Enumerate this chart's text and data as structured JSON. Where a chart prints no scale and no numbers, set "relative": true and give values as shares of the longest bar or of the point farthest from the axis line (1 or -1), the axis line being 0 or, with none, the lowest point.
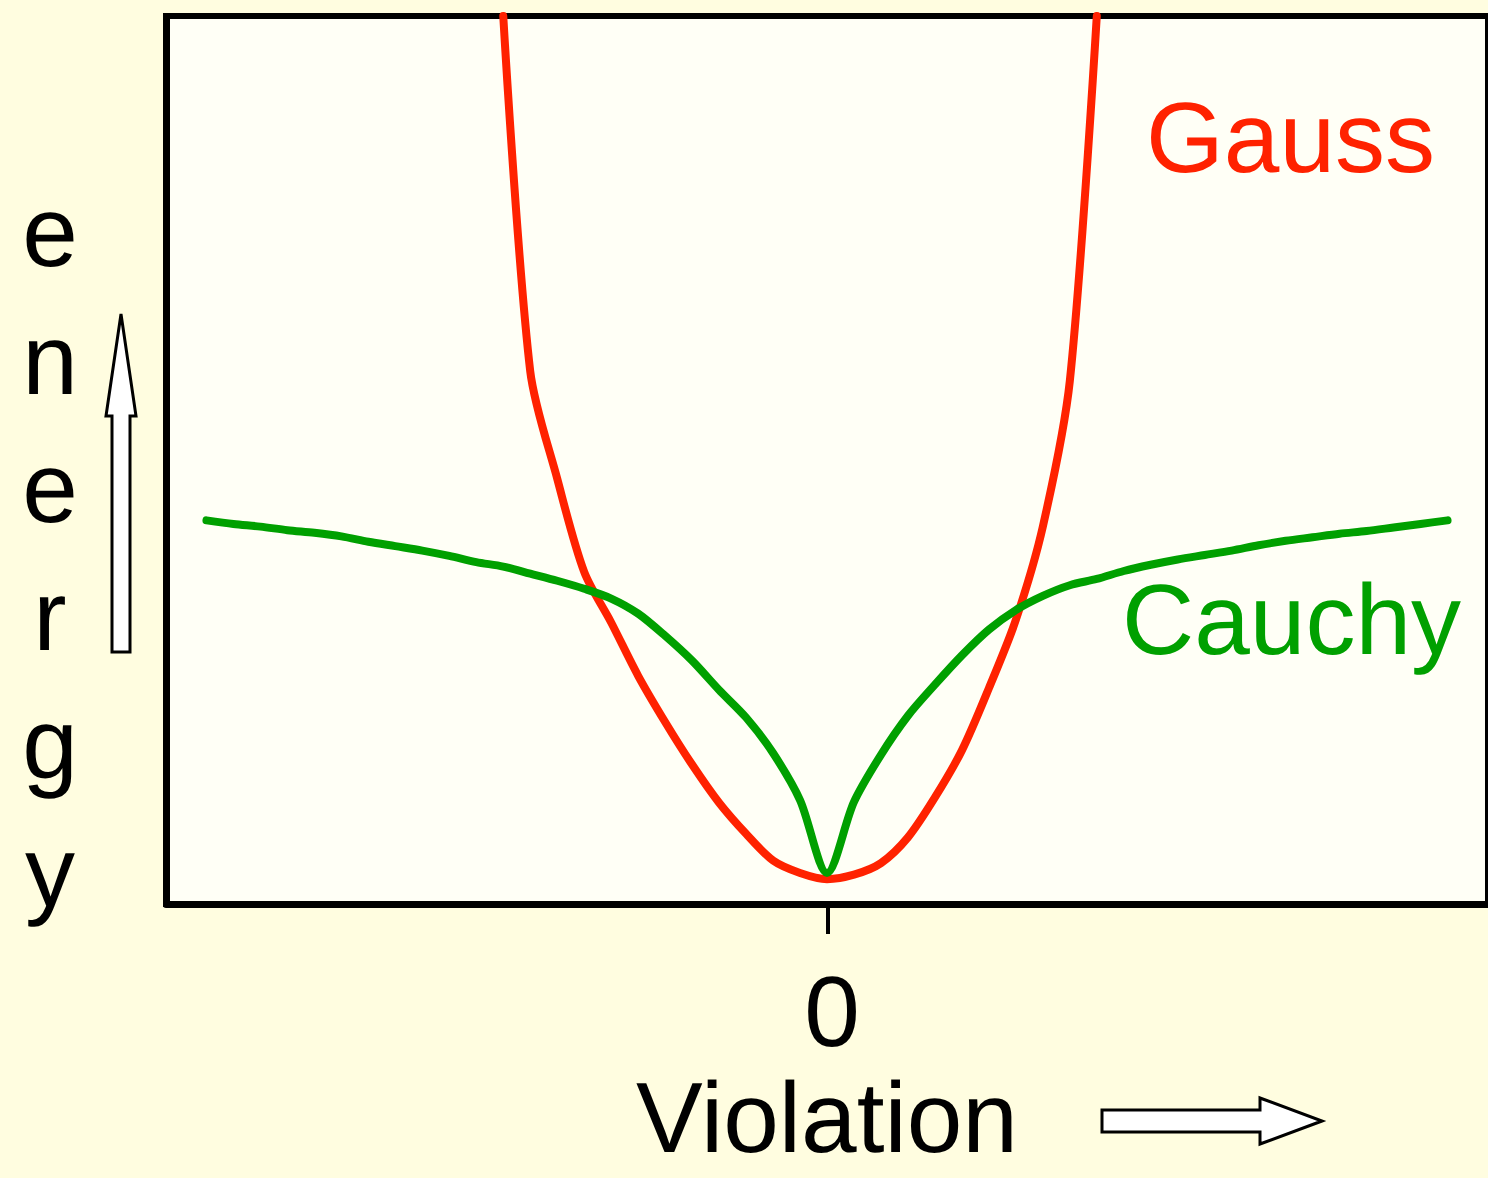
{
  "chart_data": {
    "type": "line",
    "relative": true,
    "xlabel": "Violation",
    "ylabel": "energy",
    "annotations": [
      "0"
    ],
    "legend": false,
    "grid": false,
    "marker": "none",
    "line_style": "solid",
    "categories": [
      null,
      null,
      null,
      null,
      null,
      null,
      null,
      null,
      null,
      null,
      null,
      null,
      null,
      null,
      null,
      null,
      null,
      null,
      null,
      null,
      null,
      null,
      null,
      null,
      null,
      null,
      null,
      null,
      null,
      null,
      null,
      null,
      null,
      null,
      null,
      null,
      null,
      null,
      null,
      null,
      null,
      null,
      null,
      null,
      null,
      null,
      null,
      null,
      null
    ],
    "series": [
      {
        "name": "Gauss",
        "color": "#ff2200",
        "values": [
          null,
          null,
          null,
          null,
          null,
          null,
          null,
          null,
          null,
          null,
          null,
          null,
          1,
          0.6,
          0.479,
          0.374,
          0.317,
          0.257,
          0.205,
          0.157,
          0.114,
          0.079,
          0.049,
          0.035,
          0.028,
          0.033,
          0.046,
          0.075,
          0.12,
          0.173,
          0.243,
          0.32,
          0.425,
          0.589,
          1,
          null,
          null,
          null,
          null,
          null,
          null,
          null,
          null,
          null,
          null,
          null,
          null,
          null,
          null
        ]
      },
      {
        "name": "Cauchy",
        "color": "#00a000",
        "values": [
          null,
          0.432,
          0.428,
          0.425,
          0.421,
          0.418,
          0.414,
          0.408,
          0.403,
          0.398,
          0.392,
          0.385,
          0.38,
          0.372,
          0.364,
          0.355,
          0.344,
          0.327,
          0.302,
          0.274,
          0.241,
          0.21,
          0.17,
          0.117,
          0.035,
          0.115,
          0.168,
          0.212,
          0.247,
          0.28,
          0.309,
          0.331,
          0.347,
          0.359,
          0.366,
          0.375,
          0.382,
          0.388,
          0.393,
          0.398,
          0.404,
          0.409,
          0.413,
          0.417,
          0.42,
          0.424,
          0.428,
          0.432,
          null
        ]
      }
    ]
  }
}
